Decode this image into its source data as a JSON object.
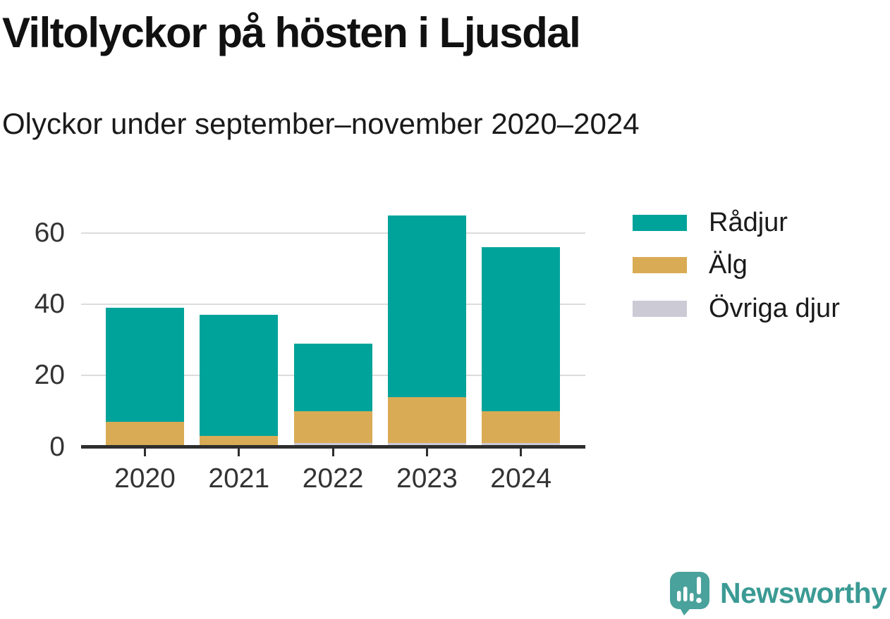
{
  "chart_data": {
    "type": "bar",
    "stacked": true,
    "title": "Viltolyckor på hösten i Ljusdal",
    "subtitle": "Olyckor under september–november 2020–2024",
    "categories": [
      "2020",
      "2021",
      "2022",
      "2023",
      "2024"
    ],
    "series": [
      {
        "name": "Rådjur",
        "color": "#00A39A",
        "values": [
          32,
          34,
          19,
          51,
          46
        ]
      },
      {
        "name": "Älg",
        "color": "#D9AB55",
        "values": [
          7,
          3,
          9,
          13,
          9
        ]
      },
      {
        "name": "Övriga djur",
        "color": "#CCCAD5",
        "values": [
          0,
          0,
          1,
          1,
          1
        ]
      }
    ],
    "ylim": [
      0,
      65
    ],
    "y_ticks": [
      0,
      20,
      40,
      60
    ],
    "grid": true,
    "legend_position": "right"
  },
  "branding": {
    "logo_text": "Newsworthy",
    "logo_text_color": "#3B9A94",
    "mark_color": "#49A29B"
  },
  "colors": {
    "background": "#FFFFFF",
    "axis": "#2E2E2E",
    "gridline": "#DCDCDC",
    "tick_label": "#333333",
    "title": "#111111",
    "subtitle": "#1A1A1A",
    "legend_text": "#1A1A1A"
  }
}
